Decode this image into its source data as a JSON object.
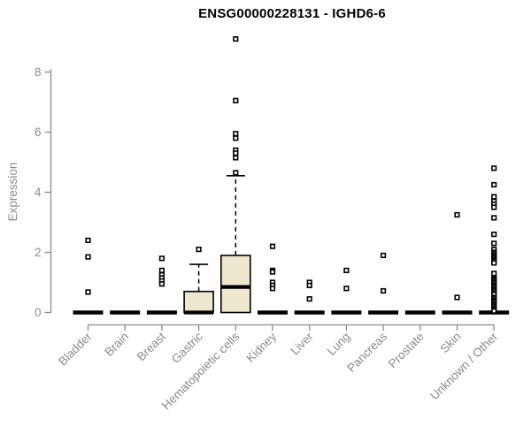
{
  "chart_data": {
    "type": "boxplot",
    "title": "ENSG00000228131 - IGHD6-6",
    "ylabel": "Expression",
    "xlabel": "",
    "ylim": [
      0,
      9.3
    ],
    "yticks": [
      0,
      2,
      4,
      6,
      8
    ],
    "grid": false,
    "legend": false,
    "marker": "open-square",
    "categories": [
      "Bladder",
      "Brain",
      "Breast",
      "Gastric",
      "Hematopoietic cells",
      "Kidney",
      "Liver",
      "Lung",
      "Pancreas",
      "Prostate",
      "Skin",
      "Unknown / Other"
    ],
    "series": [
      {
        "name": "Bladder",
        "q1": 0,
        "median": 0,
        "q3": 0,
        "whisker_low": 0,
        "whisker_high": 0,
        "outliers": [
          2.4,
          1.85,
          0.68
        ]
      },
      {
        "name": "Brain",
        "q1": 0,
        "median": 0,
        "q3": 0,
        "whisker_low": 0,
        "whisker_high": 0,
        "outliers": []
      },
      {
        "name": "Breast",
        "q1": 0,
        "median": 0,
        "q3": 0,
        "whisker_low": 0,
        "whisker_high": 0,
        "outliers": [
          1.8,
          1.4,
          1.25,
          1.15,
          1.05,
          0.95
        ]
      },
      {
        "name": "Gastric",
        "q1": 0,
        "median": 0,
        "q3": 0.7,
        "whisker_low": 0,
        "whisker_high": 1.6,
        "outliers": [
          2.1
        ]
      },
      {
        "name": "Hematopoietic cells",
        "q1": 0,
        "median": 0.85,
        "q3": 1.9,
        "whisker_low": 0,
        "whisker_high": 4.55,
        "outliers": [
          9.1,
          7.05,
          5.95,
          5.8,
          5.4,
          5.3,
          5.15,
          4.65
        ]
      },
      {
        "name": "Kidney",
        "q1": 0,
        "median": 0,
        "q3": 0,
        "whisker_low": 0,
        "whisker_high": 0,
        "outliers": [
          2.2,
          1.4,
          1.35,
          1.0,
          0.9,
          0.8
        ]
      },
      {
        "name": "Liver",
        "q1": 0,
        "median": 0,
        "q3": 0,
        "whisker_low": 0,
        "whisker_high": 0,
        "outliers": [
          1.0,
          0.9,
          0.45
        ]
      },
      {
        "name": "Lung",
        "q1": 0,
        "median": 0,
        "q3": 0,
        "whisker_low": 0,
        "whisker_high": 0,
        "outliers": [
          1.4,
          0.8
        ]
      },
      {
        "name": "Pancreas",
        "q1": 0,
        "median": 0,
        "q3": 0,
        "whisker_low": 0,
        "whisker_high": 0,
        "outliers": [
          1.9,
          0.72
        ]
      },
      {
        "name": "Prostate",
        "q1": 0,
        "median": 0,
        "q3": 0,
        "whisker_low": 0,
        "whisker_high": 0,
        "outliers": []
      },
      {
        "name": "Skin",
        "q1": 0,
        "median": 0,
        "q3": 0,
        "whisker_low": 0,
        "whisker_high": 0,
        "outliers": [
          3.25,
          0.5
        ]
      },
      {
        "name": "Unknown / Other",
        "q1": 0,
        "median": 0,
        "q3": 0,
        "whisker_low": 0,
        "whisker_high": 0,
        "outliers": [
          4.8,
          4.25,
          3.85,
          3.7,
          3.6,
          3.5,
          3.15,
          2.6,
          2.3,
          2.1,
          2.0,
          1.95,
          1.9,
          1.85,
          1.8,
          1.75,
          1.7,
          1.65,
          1.3,
          1.15,
          1.1,
          1.05,
          1.0,
          0.95,
          0.9,
          0.85,
          0.8,
          0.75,
          0.7,
          0.65,
          0.6,
          0.5,
          0.45,
          0.4,
          0.35,
          0.3,
          0.25,
          0.2,
          0.15,
          0.1,
          0.05
        ]
      }
    ],
    "colors": {
      "box_fill": "#ece7cd",
      "box_stroke": "#000000",
      "median": "#000000",
      "outlier_stroke": "#000000",
      "outlier_fill": "#ffffff",
      "axis": "#8a8a8a",
      "title": "#000000",
      "background": "#ffffff"
    }
  }
}
